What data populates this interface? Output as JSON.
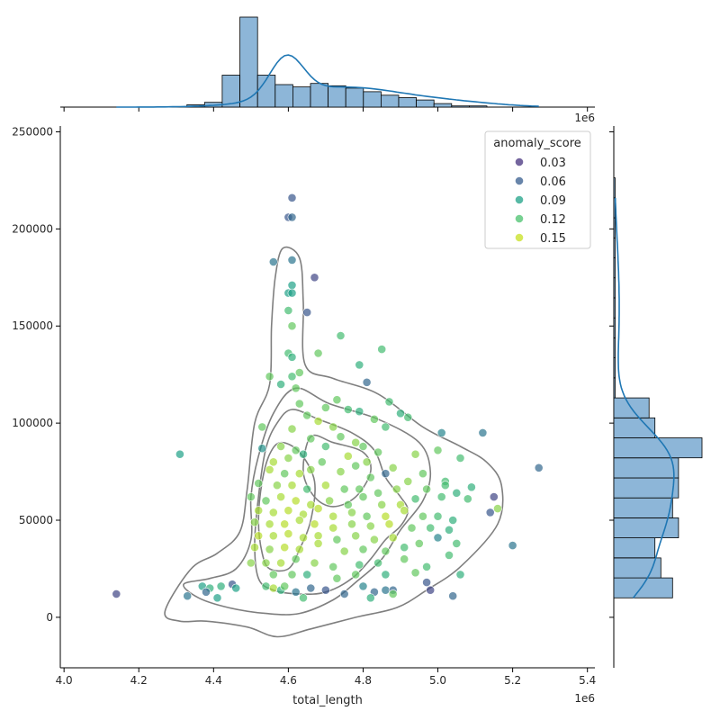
{
  "chart_data": {
    "type": "scatter",
    "title": "",
    "xlabel": "total_length",
    "ylabel": "",
    "x_offset_label": "1e6",
    "top_offset_label": "1e6",
    "xlim": [
      3.99,
      5.42
    ],
    "ylim": [
      -26000,
      253000
    ],
    "x_ticks": [
      4.0,
      4.2,
      4.4,
      4.6,
      4.8,
      5.0,
      5.2,
      5.4
    ],
    "x_tick_labels": [
      "4.0",
      "4.2",
      "4.4",
      "4.6",
      "4.8",
      "5.0",
      "5.2",
      "5.4"
    ],
    "y_ticks": [
      0,
      50000,
      100000,
      150000,
      200000,
      250000
    ],
    "y_tick_labels": [
      "0",
      "50000",
      "100000",
      "150000",
      "200000",
      "250000"
    ],
    "legend": {
      "title": "anomaly_score",
      "position": "top-right",
      "entries": [
        {
          "label": "0.03",
          "color": "#46327e"
        },
        {
          "label": "0.06",
          "color": "#365c8d"
        },
        {
          "label": "0.09",
          "color": "#1fa187"
        },
        {
          "label": "0.12",
          "color": "#4ac16d"
        },
        {
          "label": "0.15",
          "color": "#c7e020"
        }
      ]
    },
    "colormap_stops": [
      "#46327e",
      "#365c8d",
      "#277f8e",
      "#1fa187",
      "#4ac16d",
      "#a0da39",
      "#c7e020"
    ],
    "score_range": [
      0.02,
      0.16
    ],
    "points": [
      [
        4.14,
        12000,
        0.03
      ],
      [
        4.31,
        84000,
        0.09
      ],
      [
        4.61,
        216000,
        0.04
      ],
      [
        4.6,
        206000,
        0.04
      ],
      [
        4.61,
        206000,
        0.05
      ],
      [
        4.56,
        183000,
        0.06
      ],
      [
        4.61,
        184000,
        0.06
      ],
      [
        4.67,
        175000,
        0.03
      ],
      [
        4.61,
        171000,
        0.09
      ],
      [
        4.6,
        167000,
        0.09
      ],
      [
        4.61,
        167000,
        0.09
      ],
      [
        4.65,
        157000,
        0.04
      ],
      [
        4.6,
        158000,
        0.11
      ],
      [
        4.61,
        150000,
        0.12
      ],
      [
        4.74,
        145000,
        0.11
      ],
      [
        4.6,
        136000,
        0.11
      ],
      [
        4.61,
        134000,
        0.1
      ],
      [
        4.68,
        136000,
        0.12
      ],
      [
        4.85,
        138000,
        0.11
      ],
      [
        4.79,
        130000,
        0.1
      ],
      [
        4.63,
        126000,
        0.12
      ],
      [
        4.55,
        124000,
        0.12
      ],
      [
        4.61,
        124000,
        0.11
      ],
      [
        4.81,
        121000,
        0.05
      ],
      [
        4.58,
        120000,
        0.1
      ],
      [
        4.62,
        118000,
        0.12
      ],
      [
        4.63,
        110000,
        0.12
      ],
      [
        4.7,
        108000,
        0.12
      ],
      [
        4.73,
        112000,
        0.12
      ],
      [
        4.76,
        107000,
        0.11
      ],
      [
        4.87,
        111000,
        0.11
      ],
      [
        4.79,
        106000,
        0.1
      ],
      [
        4.65,
        104000,
        0.12
      ],
      [
        4.68,
        101000,
        0.14
      ],
      [
        4.61,
        97000,
        0.13
      ],
      [
        4.72,
        98000,
        0.13
      ],
      [
        4.83,
        102000,
        0.12
      ],
      [
        4.9,
        105000,
        0.1
      ],
      [
        4.86,
        98000,
        0.11
      ],
      [
        4.92,
        103000,
        0.11
      ],
      [
        4.53,
        98000,
        0.12
      ],
      [
        4.66,
        92000,
        0.12
      ],
      [
        4.74,
        93000,
        0.12
      ],
      [
        4.78,
        90000,
        0.13
      ],
      [
        5.01,
        95000,
        0.07
      ],
      [
        5.12,
        95000,
        0.06
      ],
      [
        4.53,
        87000,
        0.08
      ],
      [
        4.58,
        88000,
        0.13
      ],
      [
        4.62,
        86000,
        0.12
      ],
      [
        4.7,
        88000,
        0.11
      ],
      [
        4.8,
        88000,
        0.12
      ],
      [
        4.84,
        85000,
        0.12
      ],
      [
        4.94,
        84000,
        0.13
      ],
      [
        5.0,
        86000,
        0.12
      ],
      [
        5.06,
        82000,
        0.11
      ],
      [
        4.56,
        80000,
        0.14
      ],
      [
        4.6,
        82000,
        0.13
      ],
      [
        4.64,
        84000,
        0.1
      ],
      [
        4.69,
        80000,
        0.12
      ],
      [
        4.76,
        83000,
        0.14
      ],
      [
        4.81,
        80000,
        0.13
      ],
      [
        4.88,
        77000,
        0.13
      ],
      [
        4.96,
        74000,
        0.12
      ],
      [
        4.55,
        76000,
        0.14
      ],
      [
        4.59,
        74000,
        0.12
      ],
      [
        4.63,
        74000,
        0.14
      ],
      [
        4.66,
        76000,
        0.13
      ],
      [
        4.74,
        75000,
        0.13
      ],
      [
        4.78,
        78000,
        0.12
      ],
      [
        4.82,
        72000,
        0.12
      ],
      [
        4.86,
        74000,
        0.05
      ],
      [
        4.92,
        70000,
        0.13
      ],
      [
        5.02,
        70000,
        0.11
      ],
      [
        5.09,
        67000,
        0.1
      ],
      [
        4.52,
        69000,
        0.12
      ],
      [
        4.57,
        68000,
        0.13
      ],
      [
        4.61,
        68000,
        0.14
      ],
      [
        4.65,
        66000,
        0.11
      ],
      [
        4.7,
        68000,
        0.14
      ],
      [
        4.75,
        66000,
        0.12
      ],
      [
        4.79,
        66000,
        0.12
      ],
      [
        4.84,
        64000,
        0.12
      ],
      [
        4.89,
        66000,
        0.13
      ],
      [
        4.97,
        66000,
        0.12
      ],
      [
        5.02,
        68000,
        0.11
      ],
      [
        5.05,
        64000,
        0.1
      ],
      [
        5.08,
        61000,
        0.11
      ],
      [
        5.14,
        54000,
        0.04
      ],
      [
        5.15,
        62000,
        0.03
      ],
      [
        5.16,
        56000,
        0.13
      ],
      [
        5.2,
        37000,
        0.06
      ],
      [
        5.27,
        77000,
        0.05
      ],
      [
        4.5,
        62000,
        0.12
      ],
      [
        4.54,
        60000,
        0.12
      ],
      [
        4.58,
        62000,
        0.14
      ],
      [
        4.62,
        60000,
        0.15
      ],
      [
        4.66,
        58000,
        0.14
      ],
      [
        4.71,
        60000,
        0.13
      ],
      [
        4.76,
        58000,
        0.12
      ],
      [
        4.8,
        62000,
        0.12
      ],
      [
        4.85,
        58000,
        0.13
      ],
      [
        4.9,
        58000,
        0.14
      ],
      [
        4.94,
        61000,
        0.11
      ],
      [
        5.01,
        62000,
        0.11
      ],
      [
        4.52,
        55000,
        0.14
      ],
      [
        4.56,
        54000,
        0.14
      ],
      [
        4.6,
        55000,
        0.15
      ],
      [
        4.64,
        53000,
        0.14
      ],
      [
        4.68,
        56000,
        0.15
      ],
      [
        4.72,
        52000,
        0.14
      ],
      [
        4.77,
        54000,
        0.13
      ],
      [
        4.81,
        52000,
        0.12
      ],
      [
        4.86,
        52000,
        0.15
      ],
      [
        4.91,
        55000,
        0.14
      ],
      [
        4.96,
        52000,
        0.12
      ],
      [
        5.0,
        52000,
        0.11
      ],
      [
        5.04,
        50000,
        0.1
      ],
      [
        4.51,
        49000,
        0.13
      ],
      [
        4.55,
        48000,
        0.14
      ],
      [
        4.59,
        48000,
        0.15
      ],
      [
        4.63,
        50000,
        0.14
      ],
      [
        4.67,
        48000,
        0.15
      ],
      [
        4.72,
        46000,
        0.14
      ],
      [
        4.77,
        48000,
        0.13
      ],
      [
        4.82,
        47000,
        0.13
      ],
      [
        4.87,
        48000,
        0.15
      ],
      [
        4.93,
        46000,
        0.12
      ],
      [
        4.98,
        46000,
        0.11
      ],
      [
        5.03,
        45000,
        0.1
      ],
      [
        4.52,
        42000,
        0.15
      ],
      [
        4.56,
        42000,
        0.14
      ],
      [
        4.6,
        43000,
        0.15
      ],
      [
        4.64,
        41000,
        0.14
      ],
      [
        4.68,
        42000,
        0.14
      ],
      [
        4.73,
        40000,
        0.12
      ],
      [
        4.78,
        42000,
        0.13
      ],
      [
        4.83,
        40000,
        0.13
      ],
      [
        4.88,
        41000,
        0.14
      ],
      [
        4.95,
        38000,
        0.12
      ],
      [
        5.0,
        41000,
        0.07
      ],
      [
        5.05,
        38000,
        0.11
      ],
      [
        4.51,
        36000,
        0.14
      ],
      [
        4.55,
        35000,
        0.13
      ],
      [
        4.59,
        36000,
        0.15
      ],
      [
        4.63,
        35000,
        0.14
      ],
      [
        4.68,
        38000,
        0.14
      ],
      [
        4.75,
        34000,
        0.13
      ],
      [
        4.8,
        35000,
        0.12
      ],
      [
        4.86,
        34000,
        0.12
      ],
      [
        4.91,
        36000,
        0.11
      ],
      [
        4.5,
        28000,
        0.13
      ],
      [
        4.54,
        28000,
        0.13
      ],
      [
        4.58,
        28000,
        0.14
      ],
      [
        4.62,
        30000,
        0.12
      ],
      [
        4.67,
        28000,
        0.13
      ],
      [
        4.72,
        26000,
        0.12
      ],
      [
        4.79,
        27000,
        0.11
      ],
      [
        4.84,
        28000,
        0.11
      ],
      [
        4.91,
        30000,
        0.12
      ],
      [
        4.97,
        26000,
        0.11
      ],
      [
        5.03,
        32000,
        0.11
      ],
      [
        4.56,
        22000,
        0.12
      ],
      [
        4.61,
        22000,
        0.12
      ],
      [
        4.65,
        22000,
        0.1
      ],
      [
        4.73,
        20000,
        0.12
      ],
      [
        4.78,
        22000,
        0.12
      ],
      [
        4.86,
        22000,
        0.1
      ],
      [
        4.94,
        23000,
        0.12
      ],
      [
        4.97,
        18000,
        0.04
      ],
      [
        5.06,
        22000,
        0.1
      ],
      [
        4.37,
        16000,
        0.09
      ],
      [
        4.39,
        15000,
        0.1
      ],
      [
        4.42,
        16000,
        0.1
      ],
      [
        4.45,
        17000,
        0.04
      ],
      [
        4.46,
        15000,
        0.09
      ],
      [
        4.54,
        16000,
        0.11
      ],
      [
        4.56,
        15000,
        0.14
      ],
      [
        4.58,
        14000,
        0.1
      ],
      [
        4.62,
        13000,
        0.06
      ],
      [
        4.66,
        15000,
        0.05
      ],
      [
        4.7,
        14000,
        0.04
      ],
      [
        4.75,
        12000,
        0.05
      ],
      [
        4.8,
        16000,
        0.07
      ],
      [
        4.83,
        13000,
        0.05
      ],
      [
        4.86,
        14000,
        0.06
      ],
      [
        4.88,
        14000,
        0.05
      ],
      [
        4.98,
        14000,
        0.03
      ],
      [
        5.04,
        11000,
        0.05
      ],
      [
        4.33,
        11000,
        0.06
      ],
      [
        4.38,
        13000,
        0.05
      ],
      [
        4.41,
        10000,
        0.09
      ],
      [
        4.59,
        16000,
        0.12
      ],
      [
        4.64,
        10000,
        0.11
      ],
      [
        4.82,
        10000,
        0.1
      ],
      [
        4.88,
        12000,
        0.12
      ]
    ],
    "kde_contours": [
      [
        [
          4.585,
          190000
        ],
        [
          4.63,
          185000
        ],
        [
          4.64,
          162000
        ],
        [
          4.645,
          130000
        ],
        [
          4.72,
          123000
        ],
        [
          4.84,
          115000
        ],
        [
          4.96,
          98000
        ],
        [
          5.06,
          88000
        ],
        [
          5.13,
          80000
        ],
        [
          5.17,
          68000
        ],
        [
          5.16,
          48000
        ],
        [
          5.06,
          26000
        ],
        [
          4.97,
          14000
        ],
        [
          4.89,
          5000
        ],
        [
          4.78,
          0
        ],
        [
          4.66,
          -6000
        ],
        [
          4.57,
          -10000
        ],
        [
          4.49,
          -5000
        ],
        [
          4.38,
          -2000
        ],
        [
          4.31,
          -2000
        ],
        [
          4.27,
          3000
        ],
        [
          4.34,
          25000
        ],
        [
          4.41,
          33000
        ],
        [
          4.47,
          44000
        ],
        [
          4.49,
          66000
        ],
        [
          4.51,
          100000
        ],
        [
          4.55,
          120000
        ],
        [
          4.555,
          150000
        ],
        [
          4.565,
          175000
        ]
      ],
      [
        [
          4.62,
          118000
        ],
        [
          4.71,
          110000
        ],
        [
          4.84,
          102000
        ],
        [
          4.95,
          90000
        ],
        [
          4.98,
          75000
        ],
        [
          4.96,
          60000
        ],
        [
          4.9,
          45000
        ],
        [
          4.85,
          30000
        ],
        [
          4.78,
          18000
        ],
        [
          4.72,
          9000
        ],
        [
          4.63,
          2000
        ],
        [
          4.54,
          2000
        ],
        [
          4.44,
          5000
        ],
        [
          4.36,
          10000
        ],
        [
          4.32,
          17000
        ],
        [
          4.39,
          20000
        ],
        [
          4.46,
          25000
        ],
        [
          4.5,
          40000
        ],
        [
          4.5,
          62000
        ],
        [
          4.52,
          83000
        ],
        [
          4.56,
          105000
        ]
      ],
      [
        [
          4.61,
          107000
        ],
        [
          4.68,
          102000
        ],
        [
          4.77,
          95000
        ],
        [
          4.83,
          86000
        ],
        [
          4.86,
          72000
        ],
        [
          4.9,
          62000
        ],
        [
          4.92,
          55000
        ],
        [
          4.9,
          47000
        ],
        [
          4.86,
          40000
        ],
        [
          4.82,
          30000
        ],
        [
          4.77,
          20000
        ],
        [
          4.7,
          13000
        ],
        [
          4.63,
          12000
        ],
        [
          4.56,
          14000
        ],
        [
          4.52,
          20000
        ],
        [
          4.51,
          38000
        ],
        [
          4.52,
          62000
        ],
        [
          4.54,
          87000
        ],
        [
          4.57,
          100000
        ]
      ],
      [
        [
          4.58,
          90000
        ],
        [
          4.63,
          85000
        ],
        [
          4.67,
          70000
        ],
        [
          4.66,
          50000
        ],
        [
          4.63,
          35000
        ],
        [
          4.6,
          25000
        ],
        [
          4.55,
          25000
        ],
        [
          4.53,
          33000
        ],
        [
          4.52,
          50000
        ],
        [
          4.53,
          70000
        ],
        [
          4.55,
          84000
        ]
      ],
      [
        [
          4.66,
          93000
        ],
        [
          4.72,
          90000
        ],
        [
          4.8,
          85000
        ],
        [
          4.82,
          75000
        ],
        [
          4.78,
          62000
        ],
        [
          4.72,
          57000
        ],
        [
          4.67,
          62000
        ],
        [
          4.64,
          75000
        ]
      ]
    ],
    "top_histogram": {
      "bin_start": 4.14,
      "bin_width": 0.0472,
      "counts": [
        0,
        0,
        0,
        0,
        2,
        4,
        27,
        76,
        27,
        19,
        17,
        20,
        18,
        16,
        13,
        10,
        8,
        6,
        3,
        1,
        1,
        0,
        0,
        0
      ],
      "kde_peak_x": 4.595
    },
    "right_histogram": {
      "bin_start": 10000,
      "bin_width": 10300,
      "counts": [
        10,
        8,
        7,
        11,
        10,
        11,
        11,
        15,
        7,
        6,
        0,
        0,
        0,
        0,
        0,
        0,
        0,
        0,
        0,
        0,
        0
      ]
    }
  }
}
